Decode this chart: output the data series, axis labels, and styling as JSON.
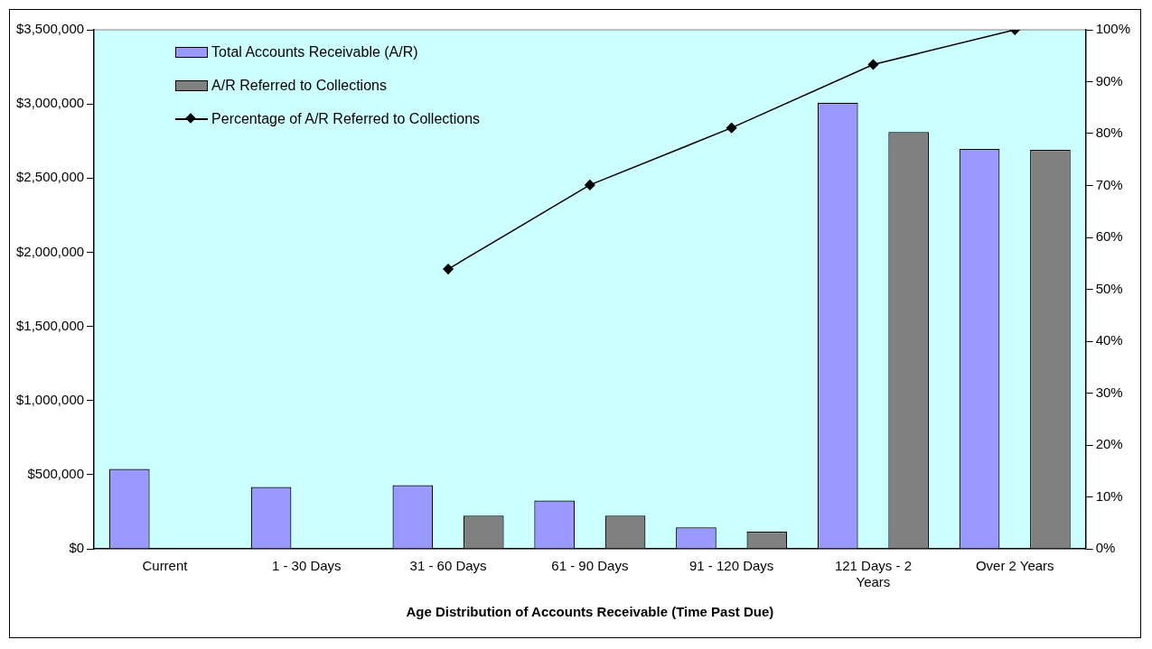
{
  "chart_data": {
    "type": "bar",
    "xlabel": "Age Distribution of Accounts Receivable (Time Past Due)",
    "categories": [
      "Current",
      "1 - 30 Days",
      "31 - 60 Days",
      "61 - 90 Days",
      "91 - 120 Days",
      "121 Days - 2 Years",
      "Over 2 Years"
    ],
    "series": [
      {
        "name": "Total Accounts Receivable (A/R)",
        "color": "#9999ff",
        "values": [
          538000,
          417000,
          429000,
          326000,
          145000,
          3008000,
          2696000
        ]
      },
      {
        "name": "A/R Referred to Collections",
        "color": "#808080",
        "values": [
          null,
          null,
          224000,
          224000,
          115000,
          2811000,
          2690000
        ]
      },
      {
        "name": "Percentage of A/R Referred to Collections",
        "type": "line",
        "axis": "y2",
        "color": "#000000",
        "marker": "diamond",
        "values": [
          null,
          null,
          53.9,
          70.1,
          81.1,
          93.3,
          100
        ]
      }
    ],
    "ylim": [
      0,
      3500000
    ],
    "yticks": [
      {
        "value": 0,
        "label": "$0"
      },
      {
        "value": 500000,
        "label": "$500,000"
      },
      {
        "value": 1000000,
        "label": "$1,000,000"
      },
      {
        "value": 1500000,
        "label": "$1,500,000"
      },
      {
        "value": 2000000,
        "label": "$2,000,000"
      },
      {
        "value": 2500000,
        "label": "$2,500,000"
      },
      {
        "value": 3000000,
        "label": "$3,000,000"
      },
      {
        "value": 3500000,
        "label": "$3,500,000"
      }
    ],
    "y2lim": [
      0,
      100
    ],
    "y2ticks": [
      {
        "value": 0,
        "label": "0%"
      },
      {
        "value": 10,
        "label": "10%"
      },
      {
        "value": 20,
        "label": "20%"
      },
      {
        "value": 30,
        "label": "30%"
      },
      {
        "value": 40,
        "label": "40%"
      },
      {
        "value": 50,
        "label": "50%"
      },
      {
        "value": 60,
        "label": "60%"
      },
      {
        "value": 70,
        "label": "70%"
      },
      {
        "value": 80,
        "label": "80%"
      },
      {
        "value": 90,
        "label": "90%"
      },
      {
        "value": 100,
        "label": "100%"
      }
    ],
    "grid": false,
    "legend": "top left"
  }
}
